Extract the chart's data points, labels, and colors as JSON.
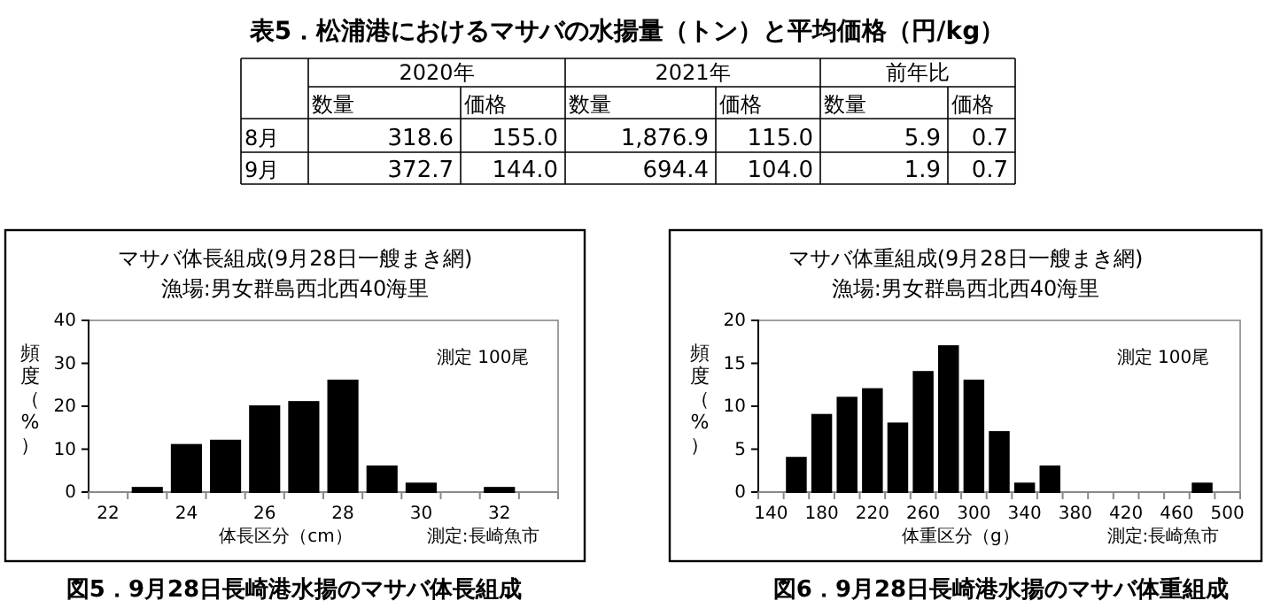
{
  "chart_data": [
    {
      "type": "other",
      "title": "表5．松浦港におけるマサバの水揚量（トン）と平均価格（円/kg）",
      "categories": [
        "8月",
        "9月"
      ],
      "annotations": [
        "2020年",
        "2021年",
        "前年比"
      ],
      "series": [
        {
          "name": "数量",
          "values": [
            318.6,
            372.7
          ],
          "value_labels": [
            "318.6",
            "372.7"
          ]
        },
        {
          "name": "価格",
          "values": [
            155.0,
            144.0
          ],
          "value_labels": [
            "155.0",
            "144.0"
          ]
        },
        {
          "name": "数量",
          "values": [
            1876.9,
            694.4
          ],
          "value_labels": [
            "1,876.9",
            "694.4"
          ]
        },
        {
          "name": "価格",
          "values": [
            115.0,
            104.0
          ],
          "value_labels": [
            "115.0",
            "104.0"
          ]
        },
        {
          "name": "数量",
          "values": [
            5.9,
            1.9
          ],
          "value_labels": [
            "5.9",
            "1.9"
          ]
        },
        {
          "name": "価格",
          "values": [
            0.7,
            0.7
          ],
          "value_labels": [
            "0.7",
            "0.7"
          ]
        }
      ]
    },
    {
      "type": "bar",
      "title": "マサバ体長組成(9月28日一艘まき網)",
      "subtitle": "漁場:男女群島西北西40海里",
      "xlabel": "体長区分（cm）",
      "ylabel": "頻度（%）",
      "categories": [
        "22",
        null,
        "24",
        null,
        "26",
        null,
        "28",
        null,
        "30",
        null,
        "32",
        null
      ],
      "values": [
        0,
        1,
        11,
        12,
        20,
        21,
        26,
        6,
        2,
        0,
        1,
        0
      ],
      "color": "#000000",
      "ylim": [
        0,
        40
      ],
      "yticks": [
        0,
        10,
        20,
        30,
        40
      ],
      "annotations": [
        "測定 100尾",
        "測定:長崎魚市",
        "図5．9月28日長崎港水揚のマサバ体長組成"
      ]
    },
    {
      "type": "bar",
      "title": "マサバ体重組成(9月28日一艘まき網)",
      "subtitle": "漁場:男女群島西北西40海里",
      "xlabel": "体重区分（g）",
      "ylabel": "頻度（%）",
      "categories": [
        "140",
        null,
        "180",
        null,
        "220",
        null,
        "260",
        null,
        "300",
        null,
        "340",
        null,
        "380",
        null,
        "420",
        null,
        "460",
        null,
        "500"
      ],
      "values": [
        0,
        4,
        9,
        11,
        12,
        8,
        14,
        17,
        13,
        7,
        1,
        3,
        0,
        0,
        0,
        0,
        0,
        1,
        0
      ],
      "color": "#000000",
      "ylim": [
        0,
        20
      ],
      "yticks": [
        0,
        5,
        10,
        15,
        20
      ],
      "annotations": [
        "測定 100尾",
        "測定:長崎魚市",
        "図6．9月28日長崎港水揚のマサバ体重組成"
      ]
    }
  ]
}
